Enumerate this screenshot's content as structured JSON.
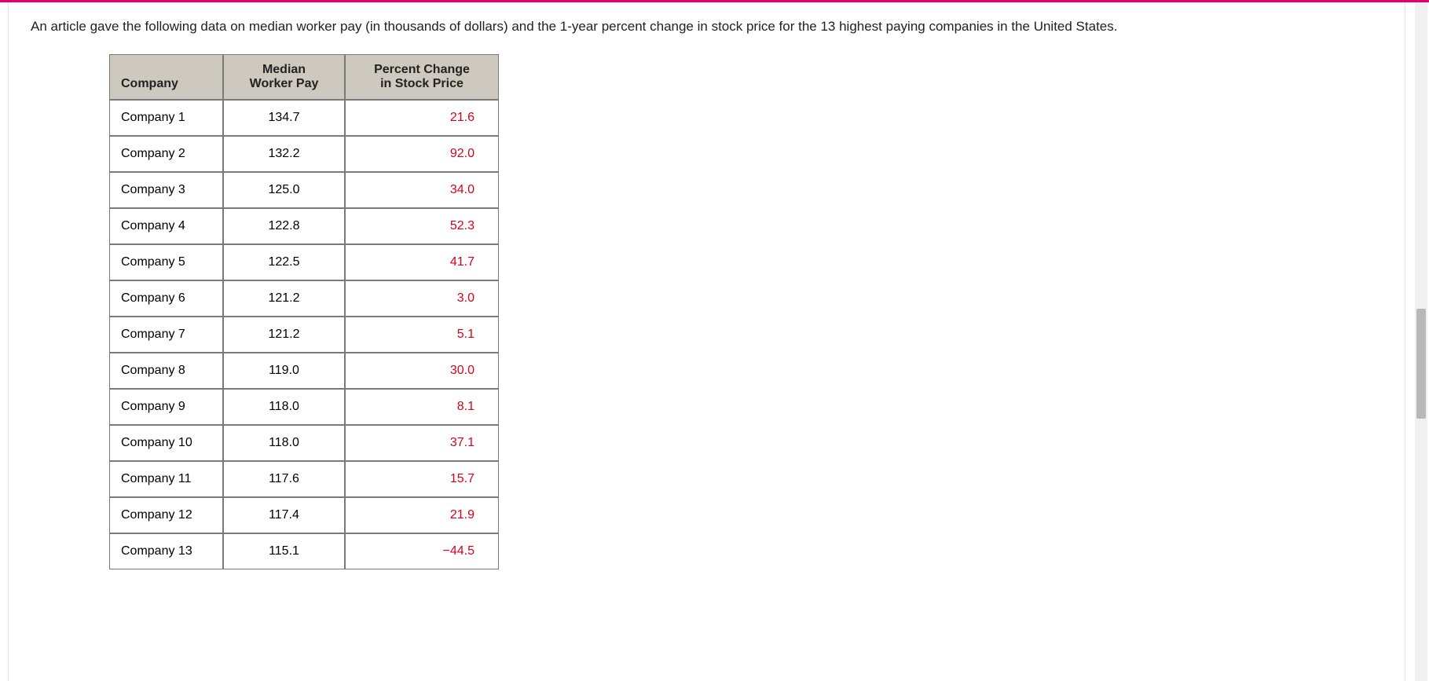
{
  "intro_text": "An article gave the following data on median worker pay (in thousands of dollars) and the 1-year percent change in stock price for the 13 highest paying companies in the United States.",
  "table": {
    "columns": {
      "company": "Company",
      "median_pay_line1": "Median",
      "median_pay_line2": "Worker Pay",
      "pct_change_line1": "Percent Change",
      "pct_change_line2": "in Stock Price"
    },
    "header_bg": "#cec9be",
    "border_color": "#7a7a7a",
    "pct_text_color": "#d9001b",
    "rows": [
      {
        "company": "Company 1",
        "pay": "134.7",
        "pct": "21.6"
      },
      {
        "company": "Company 2",
        "pay": "132.2",
        "pct": "92.0"
      },
      {
        "company": "Company 3",
        "pay": "125.0",
        "pct": "34.0"
      },
      {
        "company": "Company 4",
        "pay": "122.8",
        "pct": "52.3"
      },
      {
        "company": "Company 5",
        "pay": "122.5",
        "pct": "41.7"
      },
      {
        "company": "Company 6",
        "pay": "121.2",
        "pct": "3.0"
      },
      {
        "company": "Company 7",
        "pay": "121.2",
        "pct": "5.1"
      },
      {
        "company": "Company 8",
        "pay": "119.0",
        "pct": "30.0"
      },
      {
        "company": "Company 9",
        "pay": "118.0",
        "pct": "8.1"
      },
      {
        "company": "Company 10",
        "pay": "118.0",
        "pct": "37.1"
      },
      {
        "company": "Company 11",
        "pay": "117.6",
        "pct": "15.7"
      },
      {
        "company": "Company 12",
        "pay": "117.4",
        "pct": "21.9"
      },
      {
        "company": "Company 13",
        "pay": "115.1",
        "pct": "−44.5"
      }
    ]
  },
  "accent_color": "#e6006f"
}
